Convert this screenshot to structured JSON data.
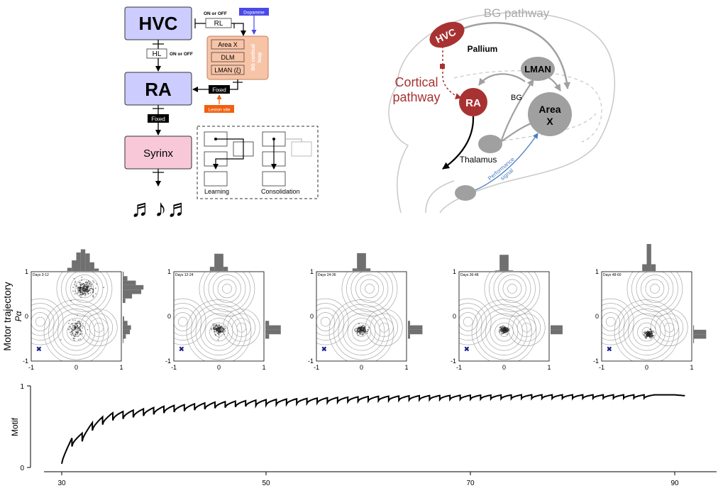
{
  "circuit": {
    "hvc": "HVC",
    "ra": "RA",
    "syrinx": "Syrinx",
    "rl": "RL",
    "hl": "HL",
    "on_off_top": "ON or OFF",
    "on_off_mid": "ON or OFF",
    "dopamine": "Dopamine",
    "area_x": "Area X",
    "dlm": "DLM",
    "lman": "LMAN (ξ)",
    "bg_loop_line1": "BG cortical",
    "bg_loop_line2": "loop",
    "fixed_ra": "Fixed",
    "fixed_syrinx": "Fixed",
    "lesion": "Lesion site",
    "notes": "♬♪♬",
    "learning": "Learning",
    "consolidation": "Consolidation",
    "colors": {
      "hvc_ra_fill": "#ccccff",
      "syrinx_fill": "#f8c8d8",
      "bg_loop_fill": "#f8c4a8",
      "dopamine": "#4a4ae8",
      "lesion": "#f06010"
    }
  },
  "brain": {
    "bg_pathway": "BG pathway",
    "hvc": "HVC",
    "pallium": "Pallium",
    "lman": "LMAN",
    "cortical_line1": "Cortical",
    "cortical_line2": "pathway",
    "ra": "RA",
    "bg": "BG",
    "area_x_line1": "Area",
    "area_x_line2": "X",
    "thalamus": "Thalamus",
    "performance_line1": "Performance",
    "performance_line2": "signal",
    "colors": {
      "red": "#a83232",
      "gray": "#a0a0a0",
      "blue": "#4a7fc0"
    }
  },
  "trajectory": {
    "ylabel": "Motor trajectory",
    "ysub": "Pα",
    "tick_neg1": "-1",
    "tick_0": "0",
    "tick_1": "1",
    "panels": [
      {
        "title": "Days 0-12",
        "cluster": [
          0.18,
          0.62
        ],
        "spread": 0.11,
        "secondary": [
          0.0,
          -0.28
        ]
      },
      {
        "title": "Days 12-24",
        "cluster": [
          0.0,
          -0.3
        ],
        "spread": 0.07
      },
      {
        "title": "Days 24-36",
        "cluster": [
          0.0,
          -0.3
        ],
        "spread": 0.06
      },
      {
        "title": "Days 36-48",
        "cluster": [
          0.0,
          -0.3
        ],
        "spread": 0.045
      },
      {
        "title": "Days 48-60",
        "cluster": [
          0.05,
          -0.4
        ],
        "spread": 0.05
      }
    ]
  },
  "motif": {
    "ylabel": "Motif",
    "ytick_top": "1",
    "ytick_bottom": "0",
    "xtick_30": "30",
    "xtick_50": "50",
    "xtick_70": "70",
    "xtick_90": "90"
  },
  "chart_data": {
    "type": "line",
    "ylabel": "Motif",
    "xlim": [
      30,
      91
    ],
    "ylim": [
      0,
      1
    ],
    "x_ticks": [
      30,
      50,
      70,
      90
    ],
    "y_ticks": [
      0,
      1
    ],
    "series": [
      {
        "x": [
          30,
          31,
          32,
          33,
          34,
          35,
          40,
          45,
          50,
          55,
          60,
          65,
          70,
          75,
          80,
          85,
          90,
          91
        ],
        "values": [
          0.15,
          0.36,
          0.42,
          0.55,
          0.62,
          0.67,
          0.75,
          0.8,
          0.83,
          0.85,
          0.87,
          0.88,
          0.885,
          0.89,
          0.89,
          0.89,
          0.89,
          0.88
        ]
      }
    ]
  }
}
